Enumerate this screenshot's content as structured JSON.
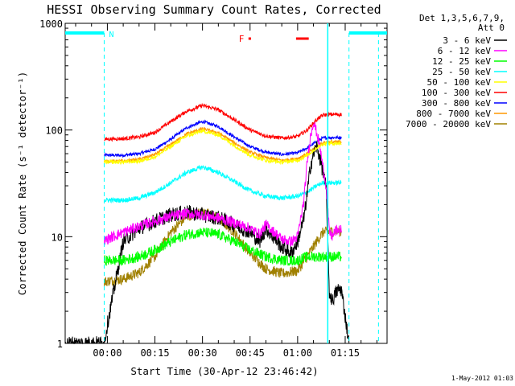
{
  "chart_data": {
    "type": "line",
    "title": "HESSI Observing Summary Count Rates, Corrected",
    "xlabel": "Start Time (30-Apr-12 23:46:42)",
    "ylabel": "Corrected Count Rate (s⁻¹ detector⁻¹)",
    "yscale": "log",
    "ylim": [
      1,
      1000
    ],
    "xlim_minutes": [
      -13.3,
      88.2
    ],
    "xticks": [
      {
        "m": 0,
        "label": "00:00"
      },
      {
        "m": 15,
        "label": "00:15"
      },
      {
        "m": 30,
        "label": "00:30"
      },
      {
        "m": 45,
        "label": "00:45"
      },
      {
        "m": 60,
        "label": "01:00"
      },
      {
        "m": 75,
        "label": "01:15"
      }
    ],
    "yticks": [
      {
        "v": 1,
        "label": "1"
      },
      {
        "v": 10,
        "label": "10"
      },
      {
        "v": 100,
        "label": "100"
      },
      {
        "v": 1000,
        "label": "1000"
      }
    ],
    "legend_header": [
      "Det 1,3,5,6,7,9,",
      "Att 0"
    ],
    "legend_position": "right",
    "date_stamp": "1-May-2012 01:03",
    "series": [
      {
        "name": "3 - 6 keV",
        "color": "#000000",
        "x": [
          -13.3,
          -9.4,
          -9.3,
          -1.0,
          0.0,
          5,
          10,
          15,
          20,
          25,
          30,
          35,
          40,
          45,
          48,
          50,
          55,
          58,
          60,
          62,
          63,
          64,
          65,
          66,
          67,
          68,
          69,
          70,
          71,
          72,
          73,
          73.8,
          76.2
        ],
        "y": [
          1,
          1,
          1,
          1,
          1.5,
          9,
          12,
          14,
          16,
          17,
          16,
          15,
          13,
          11,
          9,
          12,
          8,
          7,
          9,
          15,
          25,
          45,
          60,
          70,
          55,
          40,
          28,
          3,
          2.5,
          3,
          3.2,
          3.2,
          1
        ]
      },
      {
        "name": "6 - 12 keV",
        "color": "#ff00ff",
        "x": [
          -1.0,
          0,
          5,
          10,
          15,
          20,
          25,
          30,
          35,
          40,
          45,
          48,
          50,
          55,
          58,
          60,
          62,
          63,
          64,
          65,
          66,
          67,
          68,
          69,
          70,
          71,
          72,
          73.8
        ],
        "y": [
          9,
          9.5,
          11,
          12.5,
          14,
          15.5,
          16.5,
          16,
          15,
          13.5,
          12,
          10.5,
          13,
          9.5,
          9,
          10,
          22,
          50,
          85,
          120,
          95,
          70,
          45,
          30,
          11,
          10,
          11.5,
          11.5
        ]
      },
      {
        "name": "12 - 25 keV",
        "color": "#00ff00",
        "x": [
          -1.0,
          5,
          10,
          15,
          20,
          25,
          30,
          35,
          40,
          45,
          50,
          55,
          60,
          63,
          66,
          68,
          70,
          73.8
        ],
        "y": [
          6,
          6,
          6.5,
          7.5,
          9,
          10.5,
          11,
          10.5,
          9,
          7.5,
          6.5,
          6,
          6,
          6.5,
          6.5,
          6.5,
          6.5,
          6.5
        ]
      },
      {
        "name": "25 - 50 keV",
        "color": "#00ffff",
        "x": [
          -1.0,
          5,
          10,
          15,
          20,
          25,
          30,
          35,
          40,
          45,
          50,
          55,
          60,
          63,
          66,
          68,
          70,
          73.8
        ],
        "y": [
          22,
          22,
          23,
          26,
          32,
          40,
          45,
          40,
          33,
          27,
          24,
          23,
          24,
          26,
          30,
          32,
          32,
          32
        ]
      },
      {
        "name": "50 - 100 keV",
        "color": "#ffff00",
        "x": [
          -1.0,
          5,
          10,
          15,
          20,
          25,
          30,
          35,
          40,
          45,
          50,
          55,
          60,
          63,
          66,
          68,
          70,
          73.8
        ],
        "y": [
          50,
          50,
          51,
          56,
          70,
          88,
          98,
          90,
          72,
          58,
          52,
          50,
          52,
          58,
          68,
          74,
          75,
          75
        ]
      },
      {
        "name": "100 - 300 keV",
        "color": "#ff0000",
        "x": [
          -1.0,
          5,
          10,
          15,
          20,
          25,
          30,
          35,
          40,
          45,
          50,
          55,
          60,
          63,
          66,
          68,
          70,
          73.8
        ],
        "y": [
          82,
          83,
          86,
          95,
          120,
          150,
          170,
          155,
          125,
          100,
          88,
          84,
          87,
          100,
          125,
          138,
          140,
          140
        ]
      },
      {
        "name": "300 - 800 keV",
        "color": "#0000ff",
        "x": [
          -1.0,
          5,
          10,
          15,
          20,
          25,
          30,
          35,
          40,
          45,
          50,
          55,
          60,
          63,
          66,
          68,
          70,
          73.8
        ],
        "y": [
          58,
          58,
          60,
          66,
          82,
          105,
          120,
          108,
          86,
          70,
          62,
          59,
          61,
          68,
          78,
          84,
          85,
          85
        ]
      },
      {
        "name": "800 - 7000 keV",
        "color": "#ff9900",
        "x": [
          -1.0,
          5,
          10,
          15,
          20,
          25,
          30,
          35,
          40,
          45,
          50,
          55,
          60,
          63,
          66,
          68,
          70,
          73.8
        ],
        "y": [
          51,
          51,
          53,
          59,
          73,
          92,
          103,
          94,
          76,
          62,
          55,
          52,
          54,
          60,
          70,
          76,
          77,
          77
        ]
      },
      {
        "name": "7000 - 20000 keV",
        "color": "#a08000",
        "x": [
          -1.0,
          5,
          10,
          15,
          20,
          25,
          30,
          35,
          40,
          45,
          50,
          55,
          60,
          63,
          66,
          68,
          70,
          73.8
        ],
        "y": [
          3.8,
          4.0,
          4.6,
          6.5,
          11,
          15.5,
          17,
          15,
          11,
          7,
          5,
          4.5,
          4.8,
          6.5,
          9,
          11,
          11.2,
          11.2
        ]
      }
    ],
    "night_segments": [
      {
        "x_start": -13.3,
        "x_end": -1.0,
        "label": "N"
      },
      {
        "x_start": 76.2,
        "x_end": 88.2,
        "label": ""
      }
    ],
    "flare_marker": {
      "label": "F",
      "segments": [
        [
          44.5,
          45.3
        ],
        [
          59.5,
          63.5
        ]
      ]
    },
    "saa_lines": [
      -1.0,
      76.2
    ],
    "orbit_lines": [
      69.5,
      85.5
    ]
  }
}
